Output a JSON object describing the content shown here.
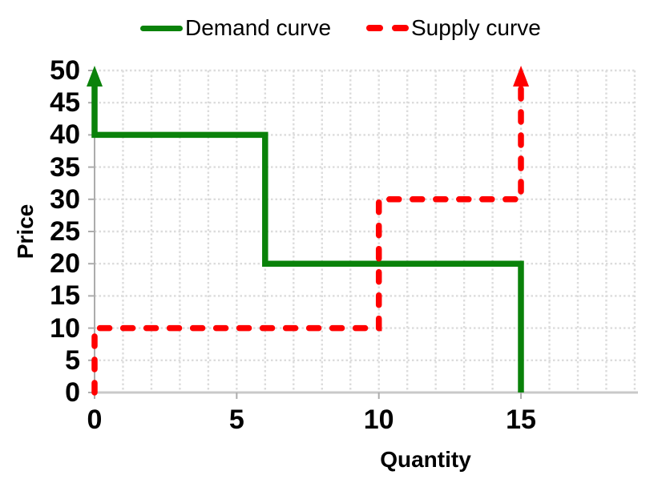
{
  "chart_data": {
    "type": "line",
    "subtype": "step",
    "title": "",
    "xlabel": "Quantity",
    "ylabel": "Price",
    "xlim": [
      0,
      19
    ],
    "ylim": [
      0,
      50
    ],
    "x_tick_values": [
      0,
      5,
      10,
      15
    ],
    "y_tick_values": [
      0,
      5,
      10,
      15,
      20,
      25,
      30,
      35,
      40,
      45,
      50
    ],
    "x_minor_grid_step": 1,
    "y_grid_step": 5,
    "grid": true,
    "legend_position": "top-center",
    "series": [
      {
        "name": "Demand curve",
        "color": "#0A820A",
        "line_style": "solid",
        "arrow": {
          "at": [
            0,
            50
          ],
          "direction": "up"
        },
        "points": [
          [
            0,
            50
          ],
          [
            0,
            40
          ],
          [
            6,
            40
          ],
          [
            6,
            20
          ],
          [
            15,
            20
          ],
          [
            15,
            0
          ]
        ]
      },
      {
        "name": "Supply curve",
        "color": "#FF0000",
        "line_style": "dashed",
        "arrow": {
          "at": [
            15,
            50
          ],
          "direction": "up"
        },
        "points": [
          [
            0,
            0
          ],
          [
            0,
            10
          ],
          [
            10,
            10
          ],
          [
            10,
            30
          ],
          [
            15,
            30
          ],
          [
            15,
            50
          ]
        ]
      }
    ],
    "grid_color": "#DCDCDC",
    "x_axis_color": "#C9C9C9",
    "y_axis_color": "#ACACAC",
    "tick_color": "#ACACAC",
    "text_color": "#000000"
  }
}
